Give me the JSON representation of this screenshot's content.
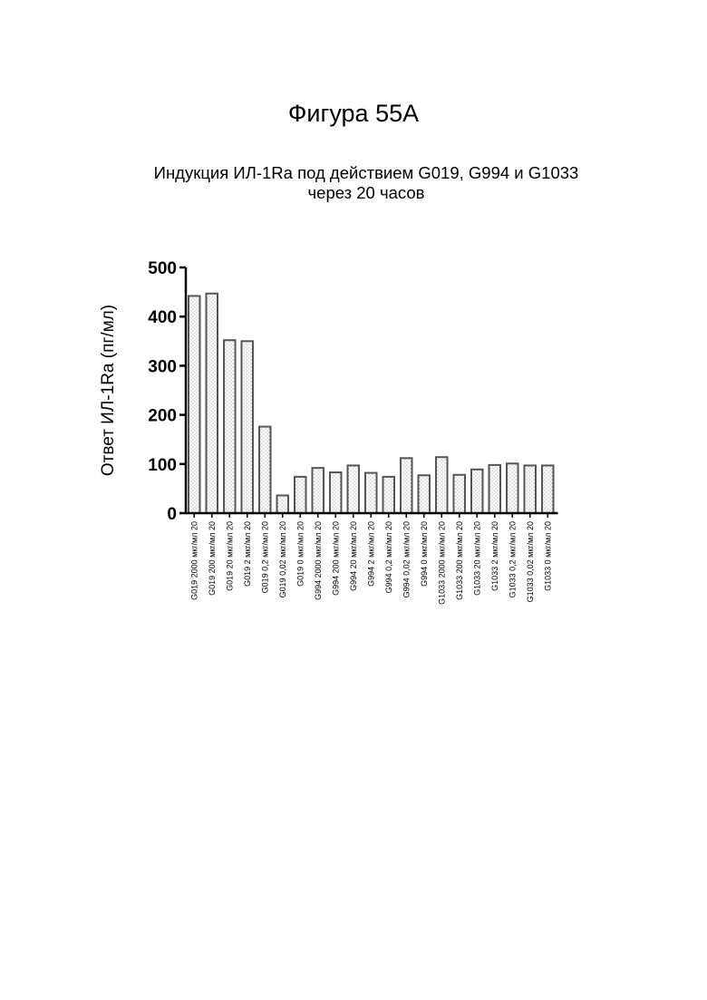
{
  "figure": {
    "title": "Фигура 55А"
  },
  "chart_data": {
    "type": "bar",
    "title_lines": [
      "Индукция ИЛ-1Ra под действием G019, G994 и G1033",
      "через 20 часов"
    ],
    "xlabel": "",
    "ylabel": "Ответ ИЛ-1Ra (пг/мл)",
    "ylim": [
      0,
      500
    ],
    "yticks": [
      0,
      100,
      200,
      300,
      400,
      500
    ],
    "grid": false,
    "bar_fill": "dotted-light-gray",
    "bar_stroke": "#555555",
    "categories": [
      "G019 2000 мкг/мл 20",
      "G019 200 мкг/мл 20",
      "G019 20 мкг/мл 20",
      "G019 2 мкг/мл 20",
      "G019 0,2 мкг/мл 20",
      "G019 0,02 мкг/мл 20",
      "G019 0 мкг/мл 20",
      "G994 2000 мкг/мл 20",
      "G994 200 мкг/мл 20",
      "G994 20 мкг/мл 20",
      "G994 2 мкг/мл 20",
      "G994 0,2 мкг/мл 20",
      "G994 0,02 мкг/мл 20",
      "G994 0 мкг/мл 20",
      "G1033 2000 мкг/мл 20",
      "G1033 200 мкг/мл 20",
      "G1033 20 мкг/мл 20",
      "G1033 2 мкг/мл 20",
      "G1033 0,2 мкг/мл 20",
      "G1033 0,02 мкг/мл 20",
      "G1033 0 мкг/мл 20"
    ],
    "values": [
      442,
      447,
      352,
      350,
      176,
      36,
      74,
      92,
      83,
      97,
      82,
      74,
      112,
      77,
      114,
      78,
      89,
      98,
      101,
      97,
      97
    ]
  }
}
